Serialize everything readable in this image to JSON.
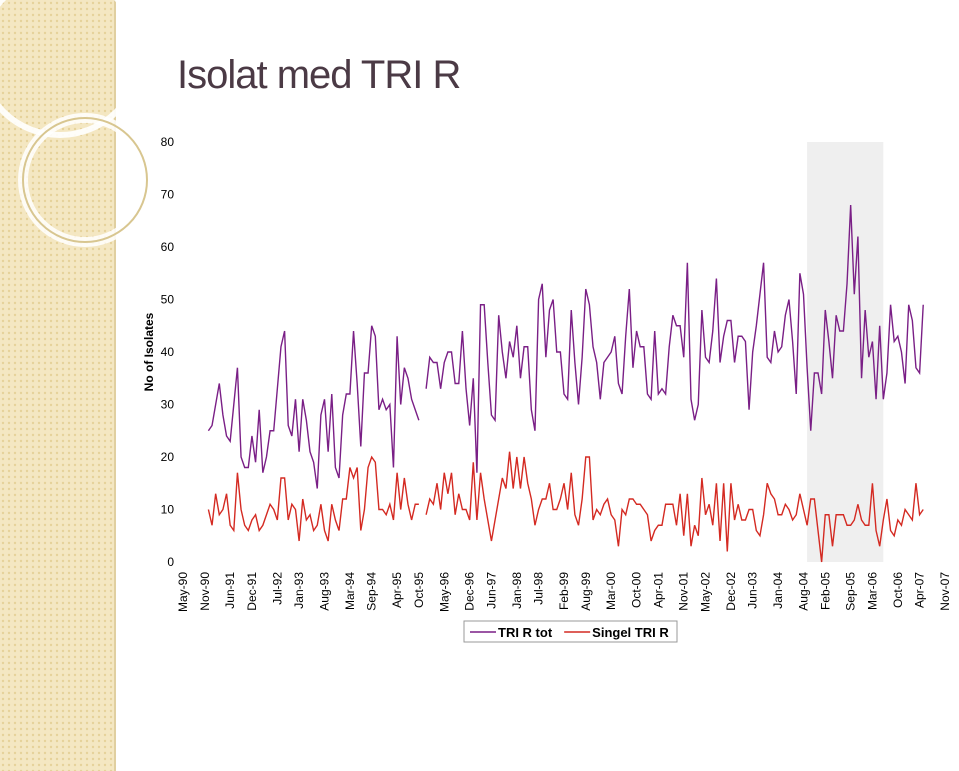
{
  "chart_data": {
    "type": "line",
    "title": "Isolat med TRI R",
    "y_label": "No of Isolates",
    "ylim": [
      0,
      80
    ],
    "yticks": [
      0,
      10,
      20,
      30,
      40,
      50,
      60,
      70,
      80
    ],
    "grid": false,
    "legend": "bottom",
    "categories": [
      "May-90",
      null,
      null,
      null,
      null,
      null,
      "Nov-90",
      null,
      null,
      null,
      null,
      null,
      null,
      "Jun-91",
      null,
      null,
      null,
      null,
      null,
      "Dec-91",
      null,
      null,
      null,
      null,
      null,
      null,
      "Jul-92",
      null,
      null,
      null,
      null,
      null,
      "Jan-93",
      null,
      null,
      null,
      null,
      null,
      null,
      "Aug-93",
      null,
      null,
      null,
      null,
      null,
      null,
      "Mar-94",
      null,
      null,
      null,
      null,
      null,
      "Sep-94",
      null,
      null,
      null,
      null,
      null,
      null,
      "Apr-95",
      null,
      null,
      null,
      null,
      null,
      "Oct-95",
      null,
      null,
      null,
      null,
      null,
      null,
      "May-96",
      null,
      null,
      null,
      null,
      null,
      null,
      "Dec-96",
      null,
      null,
      null,
      null,
      null,
      "Jun-97",
      null,
      null,
      null,
      null,
      null,
      null,
      "Jan-98",
      null,
      null,
      null,
      null,
      null,
      "Jul-98",
      null,
      null,
      null,
      null,
      null,
      null,
      "Feb-99",
      null,
      null,
      null,
      null,
      null,
      "Aug-99",
      null,
      null,
      null,
      null,
      null,
      null,
      "Mar-00",
      null,
      null,
      null,
      null,
      null,
      null,
      "Oct-00",
      null,
      null,
      null,
      null,
      null,
      "Apr-01",
      null,
      null,
      null,
      null,
      null,
      null,
      "Nov-01",
      null,
      null,
      null,
      null,
      null,
      "May-02",
      null,
      null,
      null,
      null,
      null,
      null,
      "Dec-02",
      null,
      null,
      null,
      null,
      null,
      "Jun-03",
      null,
      null,
      null,
      null,
      null,
      null,
      "Jan-04",
      null,
      null,
      null,
      null,
      null,
      null,
      "Aug-04",
      null,
      null,
      null,
      null,
      null,
      "Feb-05",
      null,
      null,
      null,
      null,
      null,
      null,
      "Sep-05",
      null,
      null,
      null,
      null,
      null,
      "Mar-06",
      null,
      null,
      null,
      null,
      null,
      null,
      "Oct-06",
      null,
      null,
      null,
      null,
      null,
      "Apr-07",
      null,
      null,
      null,
      null,
      null,
      null,
      "Nov-07"
    ],
    "series": [
      {
        "name": "TRI R tot",
        "color": "#7a1f86",
        "values": [
          null,
          null,
          null,
          null,
          null,
          null,
          null,
          25,
          26,
          30,
          34,
          28,
          24,
          23,
          30,
          37,
          20,
          18,
          18,
          24,
          19,
          29,
          17,
          20,
          25,
          25,
          33,
          41,
          44,
          26,
          24,
          31,
          21,
          31,
          27,
          21,
          19,
          14,
          28,
          31,
          21,
          32,
          18,
          16,
          28,
          32,
          32,
          44,
          34,
          22,
          36,
          36,
          45,
          43,
          29,
          31,
          29,
          30,
          18,
          43,
          30,
          37,
          35,
          31,
          29,
          27,
          null,
          33,
          39,
          38,
          38,
          33,
          38,
          40,
          40,
          34,
          34,
          44,
          33,
          26,
          35,
          17,
          49,
          49,
          38,
          28,
          27,
          47,
          40,
          35,
          42,
          39,
          45,
          35,
          41,
          41,
          29,
          25,
          50,
          53,
          39,
          48,
          50,
          40,
          40,
          32,
          31,
          48,
          38,
          30,
          39,
          52,
          49,
          41,
          38,
          31,
          38,
          39,
          40,
          43,
          34,
          32,
          43,
          52,
          37,
          44,
          41,
          41,
          32,
          31,
          44,
          32,
          33,
          32,
          41,
          47,
          45,
          45,
          39,
          57,
          31,
          27,
          30,
          48,
          39,
          38,
          44,
          54,
          38,
          43,
          46,
          46,
          38,
          43,
          43,
          42,
          29,
          40,
          45,
          51,
          57,
          39,
          38,
          44,
          40,
          41,
          47,
          50,
          42,
          32,
          55,
          51,
          37,
          25,
          36,
          36,
          32,
          48,
          42,
          35,
          47,
          44,
          44,
          53,
          68,
          51,
          62,
          35,
          48,
          39,
          42,
          31,
          45,
          31,
          36,
          49,
          42,
          43,
          40,
          34,
          49,
          46,
          37,
          36,
          49,
          null,
          null,
          null,
          null,
          null,
          null
        ]
      },
      {
        "name": "Singel TRI R",
        "color": "#d42a22",
        "values": [
          null,
          null,
          null,
          null,
          null,
          null,
          null,
          10,
          7,
          13,
          9,
          10,
          13,
          7,
          6,
          17,
          10,
          7,
          6,
          8,
          9,
          6,
          7,
          9,
          11,
          10,
          8,
          16,
          16,
          8,
          11,
          10,
          4,
          12,
          8,
          9,
          6,
          7,
          11,
          6,
          4,
          11,
          8,
          6,
          12,
          12,
          18,
          16,
          18,
          6,
          10,
          18,
          20,
          19,
          10,
          10,
          9,
          11,
          8,
          17,
          10,
          16,
          11,
          8,
          11,
          11,
          null,
          9,
          12,
          11,
          15,
          10,
          17,
          13,
          17,
          9,
          13,
          10,
          10,
          8,
          19,
          8,
          17,
          12,
          8,
          4,
          8,
          12,
          16,
          14,
          21,
          14,
          20,
          14,
          20,
          15,
          12,
          7,
          10,
          12,
          12,
          15,
          10,
          10,
          12,
          15,
          10,
          17,
          9,
          7,
          12,
          20,
          20,
          8,
          10,
          9,
          11,
          12,
          9,
          8,
          3,
          10,
          9,
          12,
          12,
          11,
          11,
          10,
          9,
          4,
          6,
          7,
          7,
          11,
          11,
          11,
          7,
          13,
          5,
          13,
          3,
          7,
          5,
          16,
          9,
          11,
          7,
          15,
          4,
          15,
          2,
          15,
          8,
          11,
          8,
          8,
          10,
          10,
          6,
          5,
          9,
          15,
          13,
          12,
          9,
          9,
          11,
          10,
          8,
          9,
          13,
          10,
          7,
          12,
          12,
          6,
          0,
          9,
          9,
          3,
          9,
          9,
          9,
          7,
          7,
          8,
          11,
          8,
          7,
          7,
          15,
          6,
          3,
          8,
          12,
          6,
          5,
          8,
          7,
          10,
          9,
          8,
          15,
          9,
          10,
          null,
          null,
          null,
          null,
          null,
          null
        ]
      }
    ]
  }
}
